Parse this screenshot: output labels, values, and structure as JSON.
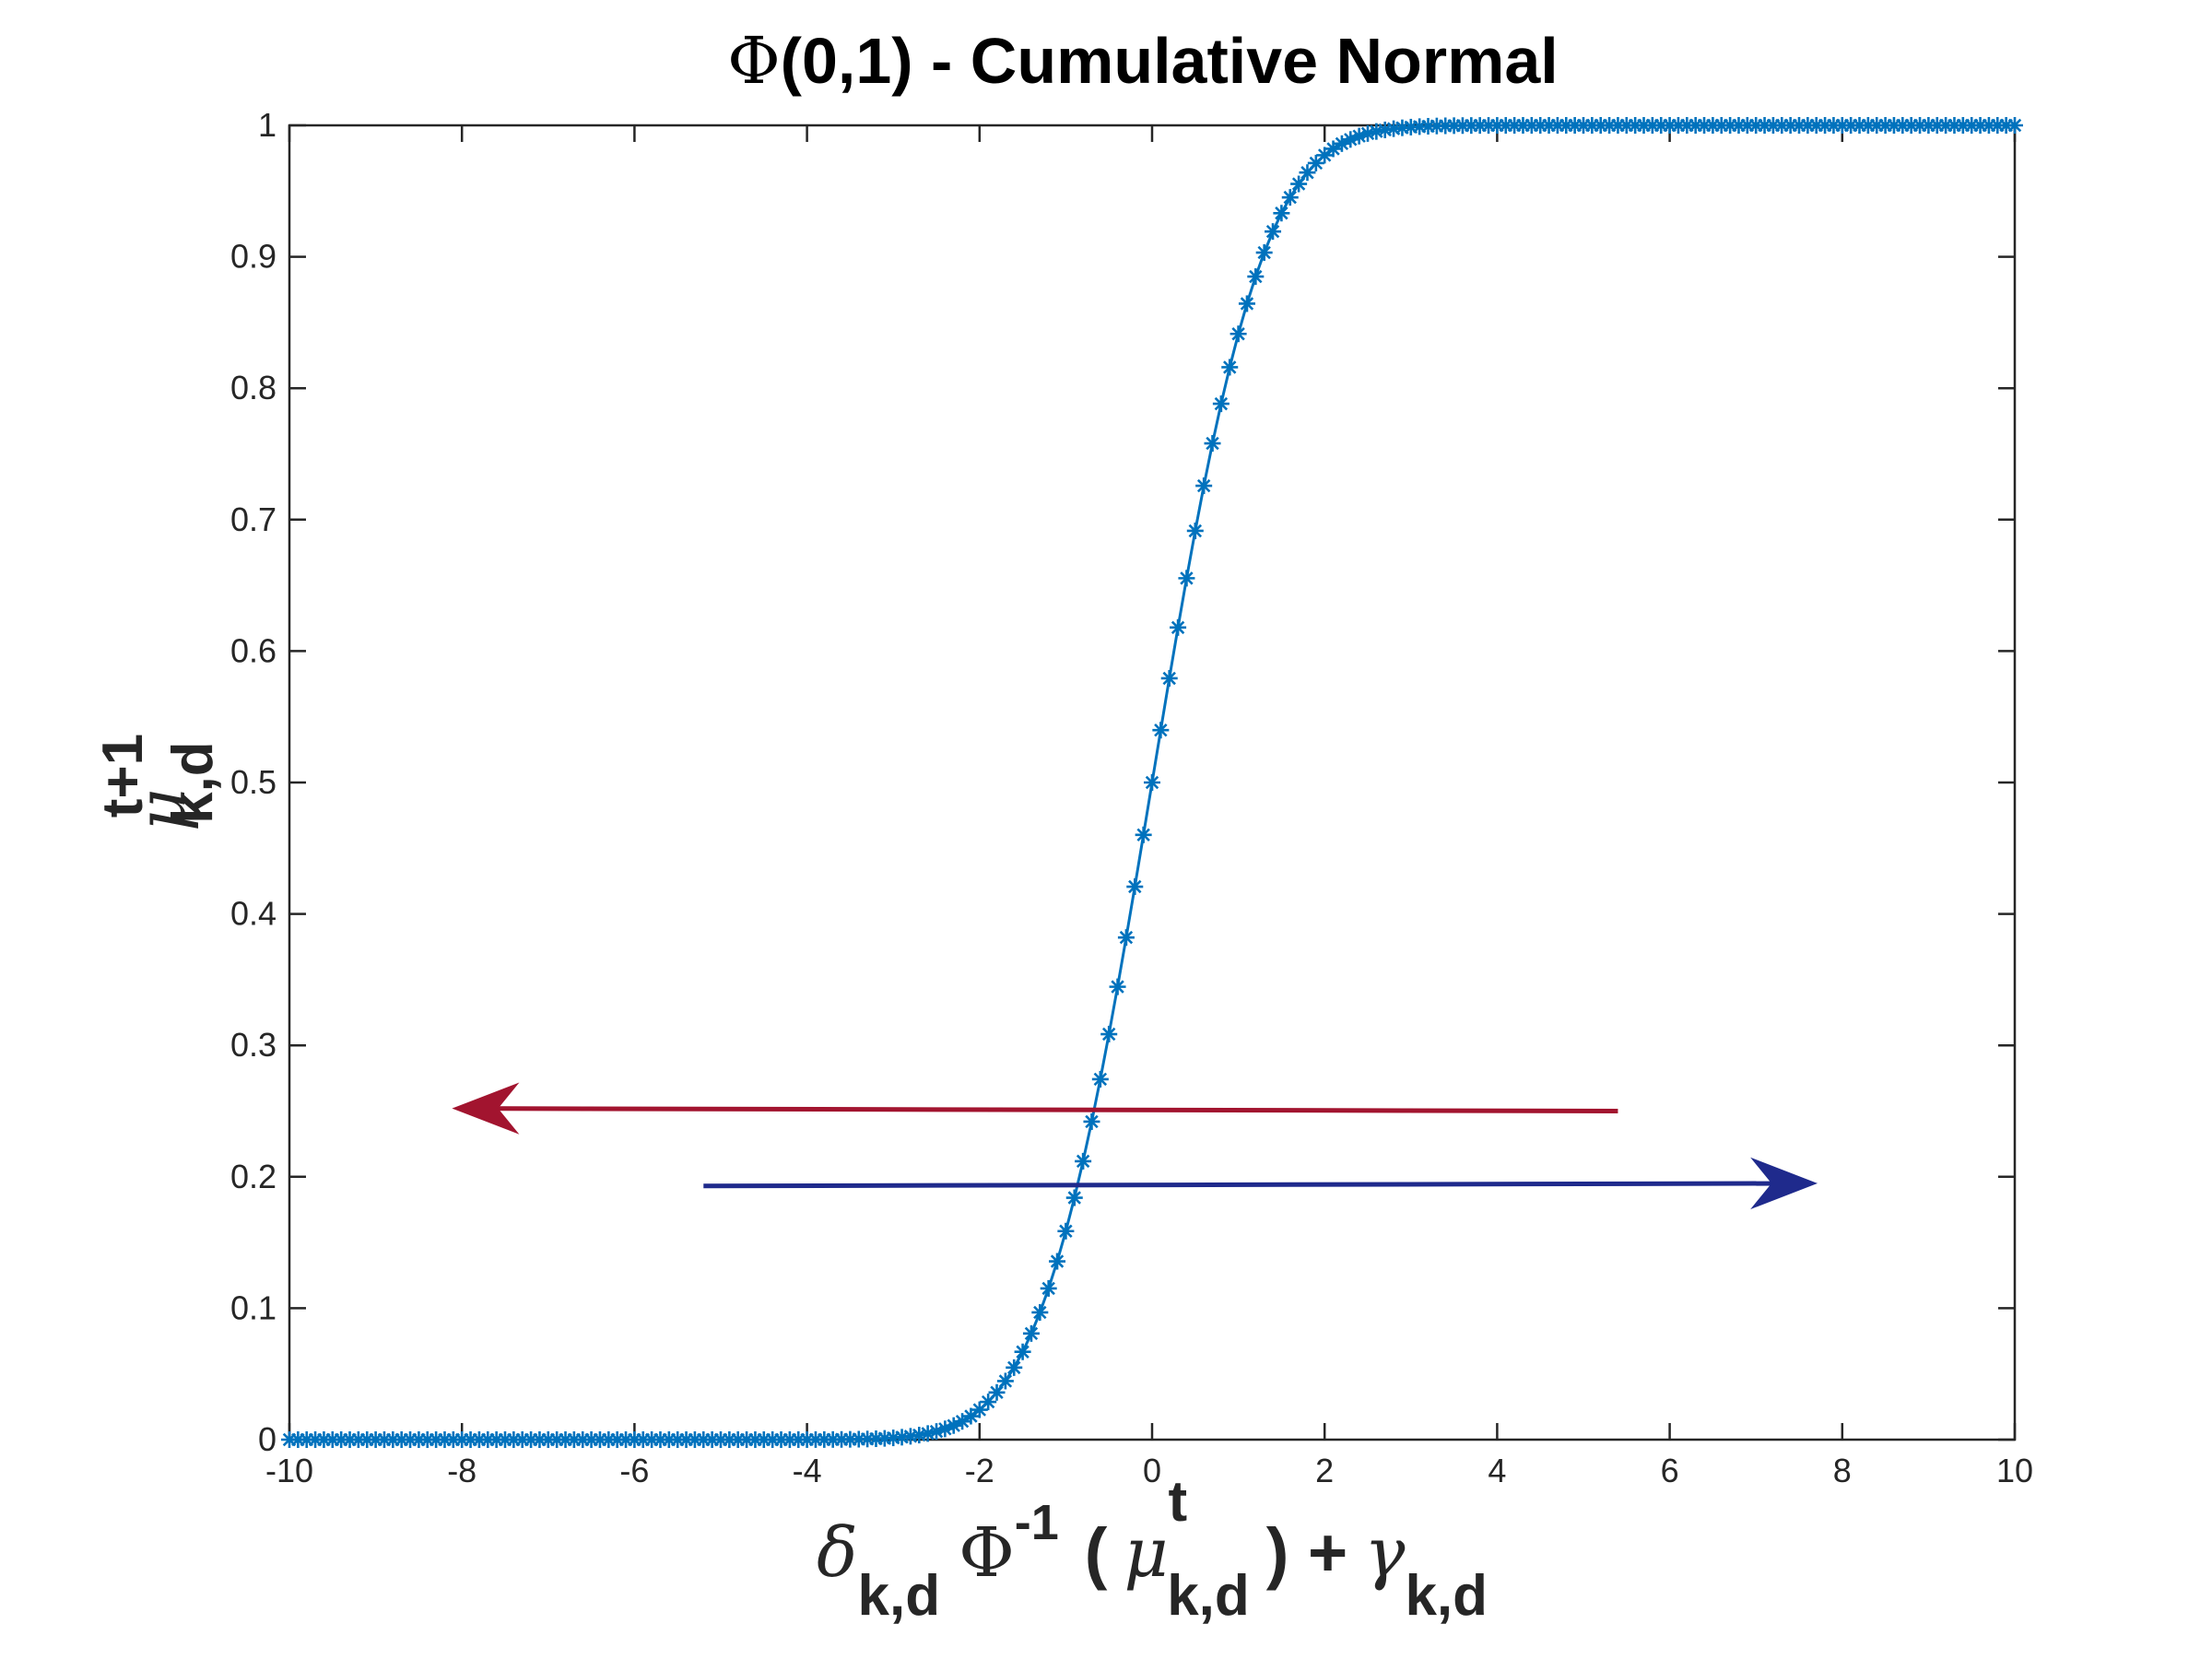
{
  "chart_data": {
    "type": "line",
    "title": "Φ(0,1) - Cumulative Normal",
    "title_parts": {
      "symbol": "Φ",
      "rest": "(0,1) - Cumulative Normal"
    },
    "xlabel": "δ_k,d Φ^-1 ( μ^t_k,d ) + γ_k,d",
    "xlabel_parts": {
      "delta": "δ",
      "sub1": "k,d",
      "phi": "Φ",
      "sup1": "-1",
      "open": "(",
      "mu": "μ",
      "sup2": "t",
      "sub2": "k,d",
      "close": ") +",
      "gamma": "γ",
      "sub3": "k,d"
    },
    "ylabel": "μ^t+1_k,d",
    "ylabel_parts": {
      "mu": "μ",
      "sup": "t+1",
      "sub": "k,d"
    },
    "xlim": [
      -10,
      10
    ],
    "ylim": [
      0,
      1
    ],
    "x_ticks": [
      "-10",
      "-8",
      "-6",
      "-4",
      "-2",
      "0",
      "2",
      "4",
      "6",
      "8",
      "10"
    ],
    "y_ticks": [
      "0",
      "0.1",
      "0.2",
      "0.3",
      "0.4",
      "0.5",
      "0.6",
      "0.7",
      "0.8",
      "0.9",
      "1"
    ],
    "grid": false,
    "series": [
      {
        "function": "normal_cdf",
        "mean": 0,
        "sd": 1,
        "x_start": -10,
        "x_end": 10,
        "step": 0.1,
        "marker": "asterisk",
        "line_color": "#0072BD"
      }
    ],
    "annotations": [
      {
        "type": "arrow",
        "direction": "left",
        "from": [
          5.4,
          0.25
        ],
        "to": [
          -8.1,
          0.252
        ],
        "color": "#A2142F"
      },
      {
        "type": "arrow",
        "direction": "right",
        "from": [
          -5.2,
          0.193
        ],
        "to": [
          7.7,
          0.195
        ],
        "color": "#1F2A8C"
      }
    ]
  }
}
